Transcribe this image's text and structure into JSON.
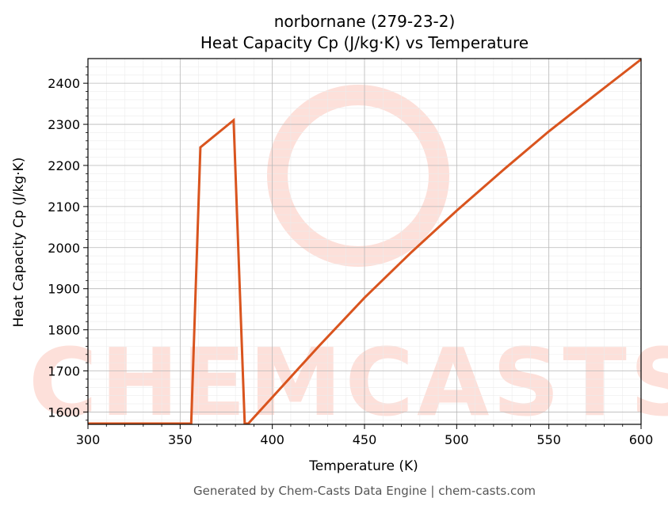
{
  "chart_data": {
    "type": "line",
    "title_line1": "norbornane (279-23-2)",
    "title_line2": "Heat Capacity Cp (J/kg·K) vs Temperature",
    "xlabel": "Temperature (K)",
    "ylabel": "Heat Capacity Cp (J/kg·K)",
    "xlim": [
      300,
      600
    ],
    "ylim": [
      1570,
      2460
    ],
    "xticks": [
      300,
      350,
      400,
      450,
      500,
      550,
      600
    ],
    "yticks": [
      1600,
      1700,
      1800,
      1900,
      2000,
      2100,
      2200,
      2300,
      2400
    ],
    "grid": true,
    "line_color": "#d9541e",
    "series": [
      {
        "x": [
          300,
          355,
          356,
          361,
          379,
          385,
          387,
          400,
          425,
          450,
          475,
          500,
          525,
          550,
          575,
          600
        ],
        "y": [
          1572,
          1572,
          1572,
          2244,
          2310,
          1572,
          1572,
          1636,
          1759,
          1878,
          1987,
          2090,
          2188,
          2283,
          2371,
          2458
        ]
      }
    ]
  },
  "watermark": {
    "text": "CHEMCASTS",
    "color": "#fde0da"
  },
  "footer": "Generated by Chem-Casts Data Engine | chem-casts.com"
}
